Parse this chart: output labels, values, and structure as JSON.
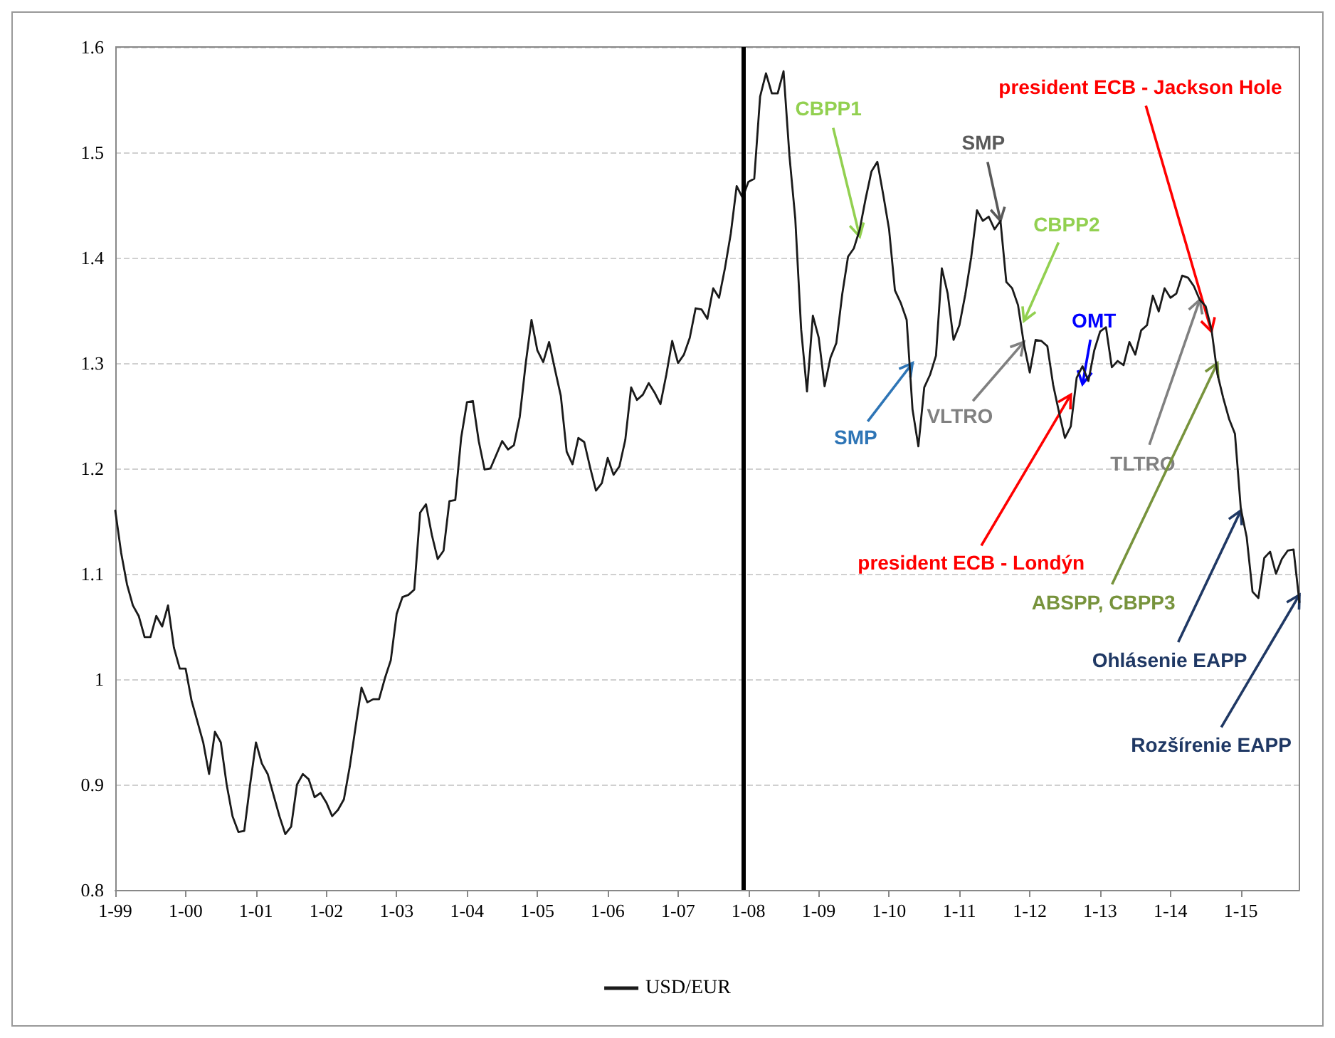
{
  "chart_data": {
    "type": "line",
    "ylim": [
      0.8,
      1.6
    ],
    "yticks": [
      0.8,
      0.9,
      1,
      1.1,
      1.2,
      1.3,
      1.4,
      1.5,
      1.6
    ],
    "xlim": [
      "1999-01",
      "2015-11"
    ],
    "xticks": [
      {
        "value": "1999-01",
        "label": "1-99"
      },
      {
        "value": "2000-01",
        "label": "1-00"
      },
      {
        "value": "2001-01",
        "label": "1-01"
      },
      {
        "value": "2002-01",
        "label": "1-02"
      },
      {
        "value": "2003-01",
        "label": "1-03"
      },
      {
        "value": "2004-01",
        "label": "1-04"
      },
      {
        "value": "2005-01",
        "label": "1-05"
      },
      {
        "value": "2006-01",
        "label": "1-06"
      },
      {
        "value": "2007-01",
        "label": "1-07"
      },
      {
        "value": "2008-01",
        "label": "1-08"
      },
      {
        "value": "2009-01",
        "label": "1-09"
      },
      {
        "value": "2010-01",
        "label": "1-10"
      },
      {
        "value": "2011-01",
        "label": "1-11"
      },
      {
        "value": "2012-01",
        "label": "1-12"
      },
      {
        "value": "2013-01",
        "label": "1-13"
      },
      {
        "value": "2014-01",
        "label": "1-14"
      },
      {
        "value": "2015-01",
        "label": "1-15"
      }
    ],
    "x": [
      "1999-01",
      "1999-02",
      "1999-03",
      "1999-04",
      "1999-05",
      "1999-06",
      "1999-07",
      "1999-08",
      "1999-09",
      "1999-10",
      "1999-11",
      "1999-12",
      "2000-01",
      "2000-02",
      "2000-03",
      "2000-04",
      "2000-05",
      "2000-06",
      "2000-07",
      "2000-08",
      "2000-09",
      "2000-10",
      "2000-11",
      "2000-12",
      "2001-01",
      "2001-02",
      "2001-03",
      "2001-04",
      "2001-05",
      "2001-06",
      "2001-07",
      "2001-08",
      "2001-09",
      "2001-10",
      "2001-11",
      "2001-12",
      "2002-01",
      "2002-02",
      "2002-03",
      "2002-04",
      "2002-05",
      "2002-06",
      "2002-07",
      "2002-08",
      "2002-09",
      "2002-10",
      "2002-11",
      "2002-12",
      "2003-01",
      "2003-02",
      "2003-03",
      "2003-04",
      "2003-05",
      "2003-06",
      "2003-07",
      "2003-08",
      "2003-09",
      "2003-10",
      "2003-11",
      "2003-12",
      "2004-01",
      "2004-02",
      "2004-03",
      "2004-04",
      "2004-05",
      "2004-06",
      "2004-07",
      "2004-08",
      "2004-09",
      "2004-10",
      "2004-11",
      "2004-12",
      "2005-01",
      "2005-02",
      "2005-03",
      "2005-04",
      "2005-05",
      "2005-06",
      "2005-07",
      "2005-08",
      "2005-09",
      "2005-10",
      "2005-11",
      "2005-12",
      "2006-01",
      "2006-02",
      "2006-03",
      "2006-04",
      "2006-05",
      "2006-06",
      "2006-07",
      "2006-08",
      "2006-09",
      "2006-10",
      "2006-11",
      "2006-12",
      "2007-01",
      "2007-02",
      "2007-03",
      "2007-04",
      "2007-05",
      "2007-06",
      "2007-07",
      "2007-08",
      "2007-09",
      "2007-10",
      "2007-11",
      "2007-12",
      "2008-01",
      "2008-02",
      "2008-03",
      "2008-04",
      "2008-05",
      "2008-06",
      "2008-07",
      "2008-08",
      "2008-09",
      "2008-10",
      "2008-11",
      "2008-12",
      "2009-01",
      "2009-02",
      "2009-03",
      "2009-04",
      "2009-05",
      "2009-06",
      "2009-07",
      "2009-08",
      "2009-09",
      "2009-10",
      "2009-11",
      "2009-12",
      "2010-01",
      "2010-02",
      "2010-03",
      "2010-04",
      "2010-05",
      "2010-06",
      "2010-07",
      "2010-08",
      "2010-09",
      "2010-10",
      "2010-11",
      "2010-12",
      "2011-01",
      "2011-02",
      "2011-03",
      "2011-04",
      "2011-05",
      "2011-06",
      "2011-07",
      "2011-08",
      "2011-09",
      "2011-10",
      "2011-11",
      "2011-12",
      "2012-01",
      "2012-02",
      "2012-03",
      "2012-04",
      "2012-05",
      "2012-06",
      "2012-07",
      "2012-08",
      "2012-09",
      "2012-10",
      "2012-11",
      "2012-12",
      "2013-01",
      "2013-02",
      "2013-03",
      "2013-04",
      "2013-05",
      "2013-06",
      "2013-07",
      "2013-08",
      "2013-09",
      "2013-10",
      "2013-11",
      "2013-12",
      "2014-01",
      "2014-02",
      "2014-03",
      "2014-04",
      "2014-05",
      "2014-06",
      "2014-07",
      "2014-08",
      "2014-09",
      "2014-10",
      "2014-11",
      "2014-12",
      "2015-01",
      "2015-02",
      "2015-03",
      "2015-04",
      "2015-05",
      "2015-06",
      "2015-07",
      "2015-08",
      "2015-09",
      "2015-10",
      "2015-11"
    ],
    "grid": "y",
    "legend": "bottom",
    "marker": "none",
    "line_style": "solid",
    "series": [
      {
        "name": "USD/EUR",
        "color": "#1a1a1a",
        "values": [
          1.16,
          1.12,
          1.09,
          1.07,
          1.06,
          1.04,
          1.04,
          1.06,
          1.05,
          1.07,
          1.03,
          1.01,
          1.01,
          0.98,
          0.96,
          0.94,
          0.91,
          0.95,
          0.94,
          0.9,
          0.87,
          0.855,
          0.856,
          0.9,
          0.94,
          0.92,
          0.91,
          0.89,
          0.87,
          0.853,
          0.86,
          0.9,
          0.91,
          0.905,
          0.888,
          0.892,
          0.883,
          0.87,
          0.876,
          0.886,
          0.917,
          0.955,
          0.992,
          0.978,
          0.981,
          0.981,
          1.001,
          1.018,
          1.062,
          1.078,
          1.08,
          1.085,
          1.158,
          1.166,
          1.137,
          1.114,
          1.122,
          1.169,
          1.17,
          1.229,
          1.263,
          1.264,
          1.226,
          1.199,
          1.2,
          1.213,
          1.226,
          1.218,
          1.222,
          1.249,
          1.299,
          1.341,
          1.312,
          1.301,
          1.32,
          1.294,
          1.269,
          1.216,
          1.204,
          1.229,
          1.225,
          1.201,
          1.179,
          1.186,
          1.21,
          1.194,
          1.202,
          1.227,
          1.277,
          1.265,
          1.27,
          1.281,
          1.272,
          1.261,
          1.289,
          1.321,
          1.3,
          1.308,
          1.324,
          1.352,
          1.351,
          1.342,
          1.371,
          1.362,
          1.39,
          1.423,
          1.468,
          1.457,
          1.472,
          1.475,
          1.553,
          1.575,
          1.556,
          1.556,
          1.577,
          1.497,
          1.437,
          1.332,
          1.273,
          1.345,
          1.324,
          1.278,
          1.305,
          1.319,
          1.365,
          1.401,
          1.409,
          1.427,
          1.456,
          1.482,
          1.491,
          1.46,
          1.427,
          1.369,
          1.357,
          1.341,
          1.256,
          1.221,
          1.277,
          1.289,
          1.307,
          1.39,
          1.366,
          1.322,
          1.336,
          1.365,
          1.4,
          1.445,
          1.435,
          1.439,
          1.427,
          1.435,
          1.377,
          1.371,
          1.355,
          1.318,
          1.291,
          1.322,
          1.321,
          1.316,
          1.279,
          1.253,
          1.229,
          1.24,
          1.286,
          1.297,
          1.283,
          1.312,
          1.33,
          1.334,
          1.296,
          1.302,
          1.298,
          1.32,
          1.308,
          1.331,
          1.336,
          1.364,
          1.349,
          1.371,
          1.362,
          1.366,
          1.383,
          1.381,
          1.373,
          1.36,
          1.354,
          1.332,
          1.29,
          1.267,
          1.247,
          1.233,
          1.162,
          1.135,
          1.083,
          1.077,
          1.115,
          1.121,
          1.1,
          1.114,
          1.122,
          1.123,
          1.073
        ]
      }
    ],
    "ref_lines": [
      {
        "axis": "x",
        "value": "2007-12",
        "color": "#000000"
      }
    ],
    "annotations": [
      {
        "text": "CBPP1",
        "x": "2009-08",
        "y": 1.42
      },
      {
        "text": "SMP",
        "x": "2011-08",
        "y": 1.435
      },
      {
        "text": "CBPP2",
        "x": "2011-12",
        "y": 1.34
      },
      {
        "text": "SMP",
        "x": "2010-05",
        "y": 1.3
      },
      {
        "text": "VLTRO",
        "x": "2011-12",
        "y": 1.32
      },
      {
        "text": "OMT",
        "x": "2012-10",
        "y": 1.28
      },
      {
        "text": "president ECB - Londýn",
        "x": "2012-08",
        "y": 1.27
      },
      {
        "text": "TLTRO",
        "x": "2014-06",
        "y": 1.36
      },
      {
        "text": "president ECB - Jackson Hole",
        "x": "2014-08",
        "y": 1.33
      },
      {
        "text": "ABSPP, CBPP3",
        "x": "2014-09",
        "y": 1.3
      },
      {
        "text": "Ohlásenie EAPP",
        "x": "2015-01",
        "y": 1.16
      },
      {
        "text": "Rozšírenie EAPP",
        "x": "2015-11",
        "y": 1.08
      }
    ]
  }
}
